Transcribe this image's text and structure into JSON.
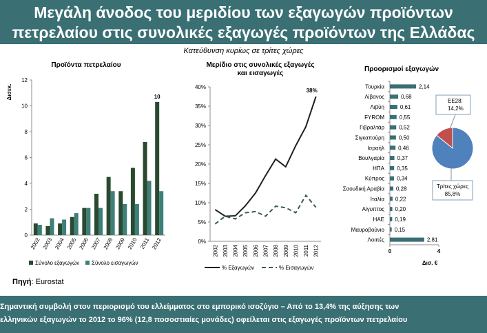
{
  "title_line1": "Μεγάλη άνοδος του μεριδίου των εξαγωγών προϊόντων",
  "title_line2": "πετρελαίου στις συνολικές εξαγωγές προϊόντων της Ελλάδας",
  "subtitle": "Κατεύθυνση κυρίως σε τρίτες χώρες",
  "source_label": "Πηγή",
  "source_value": ": Eurostat",
  "footer_line1": "Σημαντική συμβολή στον περιορισμό του ελλείμματος στο εμπορικό ισοζύγιο – Από το 13,4% της αύξησης των",
  "footer_line2": "ελληνικών εξαγωγών το 2012 το 96% (12,8 ποσοστιαίες μονάδες) οφείλεται στις εξαγωγές προϊόντων πετρελαίου",
  "chart_data": [
    {
      "type": "bar",
      "title": "Προϊόντα πετρελαίου",
      "ylabel": "Δισεκ.",
      "ylim": [
        0,
        12
      ],
      "yticks": [
        "0",
        "2",
        "4",
        "6",
        "8",
        "10",
        "12"
      ],
      "categories": [
        "2002",
        "2003",
        "2004",
        "2005",
        "2006",
        "2007",
        "2008",
        "2009",
        "2010",
        "2011",
        "2012"
      ],
      "series": [
        {
          "name": "Σύνολο εξαγωγών",
          "color": "#2a4a30",
          "values": [
            0.9,
            0.7,
            0.9,
            1.4,
            2.1,
            3.2,
            4.5,
            3.4,
            5.2,
            7.2,
            10.3
          ]
        },
        {
          "name": "Σύνολο εισαγωγών",
          "color": "#3f7f7a",
          "values": [
            0.8,
            1.3,
            1.2,
            1.7,
            2.1,
            2.1,
            3.4,
            2.4,
            2.4,
            4.2,
            3.4
          ]
        }
      ],
      "annotations": [
        {
          "category": "2012",
          "text": "10"
        }
      ],
      "legend": "bottom",
      "grid": false
    },
    {
      "type": "line",
      "title": "Μερίδιο στις συνολικές εξαγωγές και εισαγωγές",
      "ylim": [
        0,
        40
      ],
      "yticks": [
        "0%",
        "5%",
        "10%",
        "15%",
        "20%",
        "25%",
        "30%",
        "35%",
        "40%"
      ],
      "x": [
        "2002",
        "2003",
        "2004",
        "2005",
        "2006",
        "2007",
        "2008",
        "2009",
        "2010",
        "2011",
        "2012"
      ],
      "series": [
        {
          "name": "% Εξαγωγών",
          "color": "#1f1f1f",
          "dash": false,
          "values": [
            8.2,
            6.5,
            6.6,
            9.2,
            12.5,
            17.0,
            21.3,
            19.3,
            24.8,
            29.7,
            37.5
          ]
        },
        {
          "name": "% Εισαγωγών",
          "color": "#3a5a55",
          "dash": true,
          "values": [
            4.5,
            6.5,
            5.8,
            7.4,
            7.7,
            6.5,
            9.1,
            8.7,
            7.4,
            11.9,
            8.8
          ]
        }
      ],
      "annotations": [
        {
          "x": "2012",
          "text": "38%"
        }
      ],
      "legend": "bottom",
      "grid": false
    },
    {
      "type": "bar",
      "orientation": "horizontal",
      "title": "Προορισμοί εξαγωγών",
      "xlabel": "Δισ. €",
      "xlim": [
        0,
        4
      ],
      "xticks": [
        "0",
        "4"
      ],
      "categories": [
        "Τουρκία",
        "Λίβανος",
        "Λιβύη",
        "FYROM",
        "Γιβραλτάρ",
        "Σιγκαπούρη",
        "Ισραήλ",
        "Βουλγαρία",
        "ΗΠΑ",
        "Κύπρος",
        "Σαουδική Αραβία",
        "Ιταλία",
        "Αίγυπτος",
        "ΗΑΕ",
        "Μαυροβούνιο",
        "Λοιπές"
      ],
      "values": [
        2.14,
        0.68,
        0.61,
        0.55,
        0.52,
        0.5,
        0.46,
        0.37,
        0.35,
        0.34,
        0.28,
        0.22,
        0.2,
        0.19,
        0.15,
        2.81
      ],
      "value_labels": [
        "2,14",
        "0,68",
        "0,61",
        "0,55",
        "0,52",
        "0,50",
        "0,46",
        "0,37",
        "0,35",
        "0,34",
        "0,28",
        "0,22",
        "0,20",
        "0,19",
        "0,15",
        "2,81"
      ],
      "color": "#3a6f73"
    },
    {
      "type": "pie",
      "slices": [
        {
          "label": "ΕΕ28:",
          "value_label": "14,2%",
          "value": 14.2,
          "color": "#c0504d"
        },
        {
          "label": "Τρίτες χώρες",
          "value_label": "85,8%",
          "value": 85.8,
          "color": "#4f81bd"
        }
      ]
    }
  ]
}
